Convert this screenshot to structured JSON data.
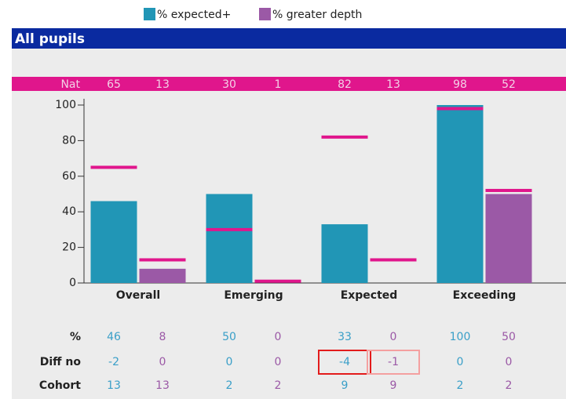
{
  "chart_data": {
    "type": "bar",
    "title": "All pupils",
    "categories": [
      "Overall",
      "Emerging",
      "Expected",
      "Exceeding"
    ],
    "series": [
      {
        "name": "% expected+",
        "color": "#2196b6",
        "text_color": "#3a9fc8",
        "values": [
          46,
          50,
          33,
          100
        ],
        "nat": [
          65,
          30,
          82,
          98
        ],
        "diff": [
          -2,
          0,
          -4,
          0
        ],
        "cohort": [
          13,
          2,
          9,
          2
        ]
      },
      {
        "name": "% greater depth",
        "color": "#9b59a6",
        "text_color": "#9b59a6",
        "values": [
          8,
          0,
          0,
          50
        ],
        "nat": [
          13,
          1,
          13,
          52
        ],
        "diff": [
          0,
          0,
          -1,
          0
        ],
        "cohort": [
          13,
          2,
          9,
          2
        ]
      }
    ],
    "nat_label": "Nat",
    "nat_color": "#e0168c",
    "row_labels": [
      "%",
      "Diff no",
      "Cohort"
    ],
    "highlights": [
      {
        "series": 0,
        "index": 2,
        "color": "#e31b1b"
      },
      {
        "series": 1,
        "index": 2,
        "color": "#f4a0a0"
      }
    ],
    "ylim": [
      0,
      100
    ],
    "yticks": [
      0,
      20,
      40,
      60,
      80,
      100
    ],
    "grid": false
  }
}
